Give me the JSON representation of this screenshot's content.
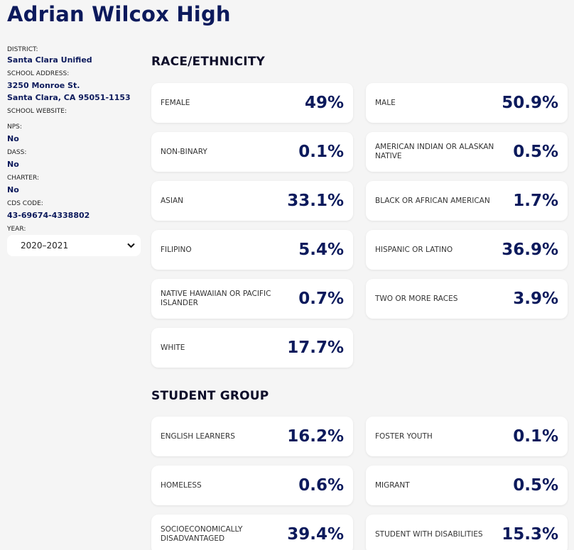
{
  "school": {
    "name": "Adrian Wilcox High"
  },
  "meta": {
    "district_label": "DISTRICT:",
    "district": "Santa Clara Unified",
    "address_label": "SCHOOL ADDRESS:",
    "address_line1": "3250 Monroe St.",
    "address_line2": "Santa Clara, CA 95051-1153",
    "website_label": "SCHOOL WEBSITE:",
    "nps_label": "NPS:",
    "nps": "No",
    "dass_label": "DASS:",
    "dass": "No",
    "charter_label": "CHARTER:",
    "charter": "No",
    "cds_label": "CDS CODE:",
    "cds": "43-69674-4338802",
    "year_label": "YEAR:",
    "year": "2020–2021"
  },
  "race": {
    "title": "RACE/ETHNICITY",
    "items": [
      {
        "label": "FEMALE",
        "value": "49%"
      },
      {
        "label": "MALE",
        "value": "50.9%"
      },
      {
        "label": "NON-BINARY",
        "value": "0.1%"
      },
      {
        "label": "AMERICAN INDIAN OR ALASKAN NATIVE",
        "value": "0.5%"
      },
      {
        "label": "ASIAN",
        "value": "33.1%"
      },
      {
        "label": "BLACK OR AFRICAN AMERICAN",
        "value": "1.7%"
      },
      {
        "label": "FILIPINO",
        "value": "5.4%"
      },
      {
        "label": "HISPANIC OR LATINO",
        "value": "36.9%"
      },
      {
        "label": "NATIVE HAWAIIAN OR PACIFIC ISLANDER",
        "value": "0.7%"
      },
      {
        "label": "TWO OR MORE RACES",
        "value": "3.9%"
      },
      {
        "label": "WHITE",
        "value": "17.7%"
      }
    ]
  },
  "groups": {
    "title": "STUDENT GROUP",
    "items": [
      {
        "label": "ENGLISH LEARNERS",
        "value": "16.2%"
      },
      {
        "label": "FOSTER YOUTH",
        "value": "0.1%"
      },
      {
        "label": "HOMELESS",
        "value": "0.6%"
      },
      {
        "label": "MIGRANT",
        "value": "0.5%"
      },
      {
        "label": "SOCIOECONOMICALLY DISADVANTAGED",
        "value": "39.4%"
      },
      {
        "label": "STUDENT WITH DISABILITIES",
        "value": "15.3%"
      }
    ]
  },
  "colors": {
    "accent": "#0c1a5c",
    "background": "#f5f5f5",
    "card": "#ffffff"
  }
}
